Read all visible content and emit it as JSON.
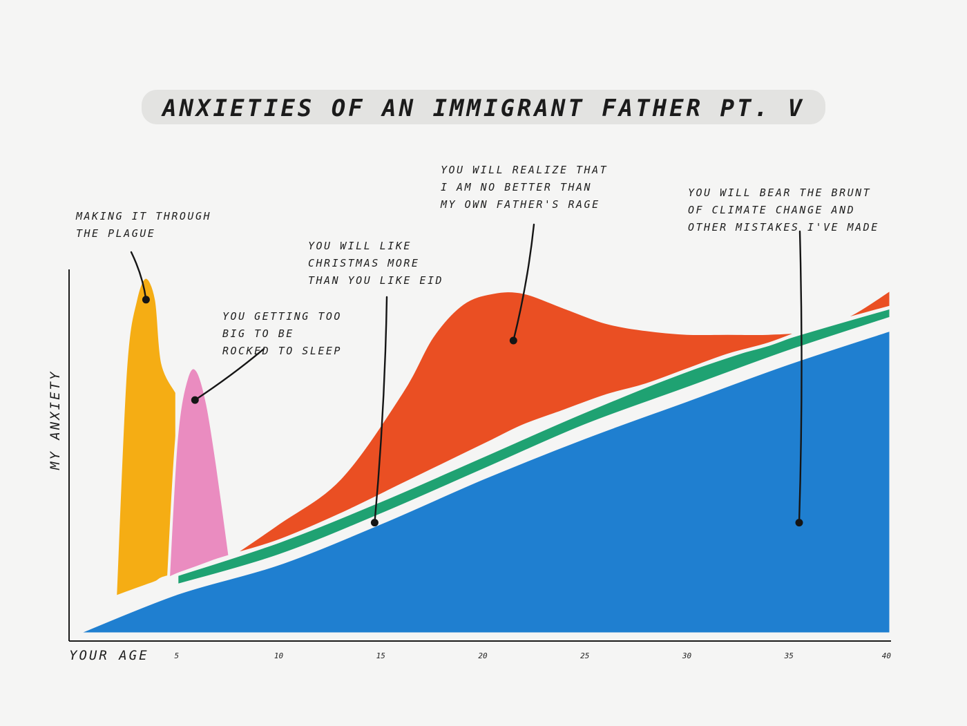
{
  "chart_data": {
    "type": "area",
    "title": "ANXIETIES OF AN IMMIGRANT FATHER PT. V",
    "xlabel": "YOUR AGE",
    "ylabel": "MY ANXIETY",
    "xlim": [
      0,
      40
    ],
    "ylim": [
      0,
      100
    ],
    "x_ticks": [
      5,
      10,
      15,
      20,
      25,
      30,
      35,
      40
    ],
    "colors": {
      "plague": "#f5ad14",
      "sleep": "#ea8cc0",
      "father_rage": "#ea4f23",
      "christmas": "#1fa272",
      "climate": "#1f7fd0",
      "paper": "#f5f5f4",
      "ink": "#151515"
    },
    "series": [
      {
        "key": "plague",
        "x": [
          2.0,
          2.5,
          3.0,
          3.5,
          4.0,
          4.3,
          5.0
        ],
        "top": [
          10,
          71,
          90,
          96,
          90,
          73,
          65
        ],
        "base": [
          10,
          11,
          12,
          13,
          14,
          15,
          16
        ]
      },
      {
        "key": "sleep",
        "x": [
          4.6,
          5.0,
          5.5,
          6.0,
          6.5,
          7.0,
          7.6
        ],
        "top": [
          15,
          53,
          69,
          71,
          62,
          45,
          21
        ],
        "base": [
          15,
          16,
          17,
          18,
          19,
          20,
          21
        ]
      },
      {
        "key": "father_rage",
        "x": [
          7.6,
          10,
          13,
          16,
          17.5,
          19,
          20.5,
          22,
          24,
          26,
          28,
          30,
          32,
          34,
          36,
          38,
          40
        ],
        "top": [
          21,
          30,
          42,
          65,
          80,
          89,
          92,
          92,
          88,
          84,
          82,
          81,
          81,
          81,
          82,
          86,
          93
        ],
        "base": [
          21,
          25,
          32,
          40,
          44,
          48,
          52,
          56,
          60,
          64,
          67,
          71,
          75,
          78,
          82,
          85,
          88
        ]
      },
      {
        "key": "christmas",
        "x": [
          5,
          10,
          15,
          20,
          25,
          30,
          35,
          40
        ],
        "top": [
          16,
          25,
          36,
          48,
          60,
          71,
          80,
          88
        ],
        "base": [
          13,
          21,
          32,
          44,
          56,
          66,
          76,
          85
        ]
      },
      {
        "key": "climate",
        "x": [
          0,
          5,
          10,
          15,
          20,
          25,
          30,
          35,
          40
        ],
        "top": [
          0,
          11,
          19,
          30,
          42,
          53,
          63,
          73,
          82
        ],
        "base": [
          0,
          0,
          0,
          0,
          0,
          0,
          0,
          0,
          0
        ]
      }
    ],
    "annotations": [
      {
        "key": "plague",
        "lines": [
          "MAKING IT THROUGH",
          "THE PLAGUE"
        ],
        "point": [
          3.5,
          90
        ]
      },
      {
        "key": "sleep",
        "lines": [
          "YOU GETTING TOO",
          "BIG TO BE",
          "ROCKED TO SLEEP"
        ],
        "point": [
          5.9,
          63
        ]
      },
      {
        "key": "christmas",
        "lines": [
          "YOU WILL LIKE",
          "CHRISTMAS MORE",
          "THAN YOU LIKE EID"
        ],
        "point": [
          14.7,
          30
        ]
      },
      {
        "key": "father_rage",
        "lines": [
          "YOU WILL REALIZE THAT",
          "I AM NO BETTER THAN",
          "MY OWN FATHER'S RAGE"
        ],
        "point": [
          21.5,
          79
        ]
      },
      {
        "key": "climate",
        "lines": [
          "YOU WILL BEAR THE BRUNT",
          "OF CLIMATE CHANGE AND",
          "OTHER MISTAKES I'VE MADE"
        ],
        "point": [
          35.5,
          30
        ]
      }
    ]
  }
}
